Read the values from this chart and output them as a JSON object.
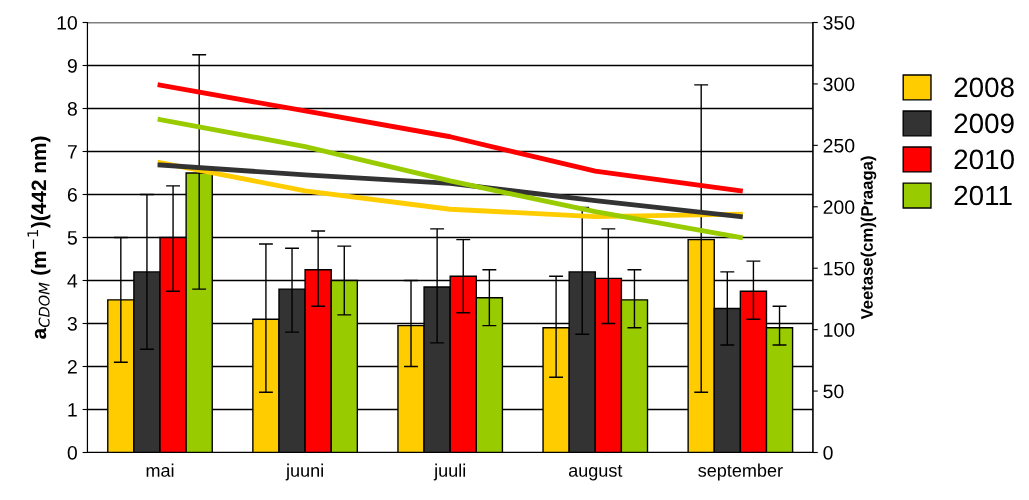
{
  "chart_data": {
    "type": "bar",
    "categories": [
      "mai",
      "juuni",
      "juuli",
      "august",
      "september"
    ],
    "ylabel": "a$_{CDOM}$ (m$^{−1}$)(442 nm)",
    "y2label": "Veetase(cm)(Praaga)",
    "ylim": [
      0,
      10
    ],
    "yticks": [
      0,
      1,
      2,
      3,
      4,
      5,
      6,
      7,
      8,
      9,
      10
    ],
    "y2lim": [
      0,
      350
    ],
    "y2ticks": [
      0,
      50,
      100,
      150,
      200,
      250,
      300,
      350
    ],
    "grid": "y",
    "legend": "right",
    "marker": "none",
    "series": [
      {
        "name": "2008",
        "color": "#ffcc00",
        "values": [
          3.55,
          3.1,
          2.95,
          2.9,
          4.95
        ],
        "errors": [
          [
            2.1,
            5.0
          ],
          [
            1.4,
            4.85
          ],
          [
            2.0,
            4.0
          ],
          [
            1.75,
            4.1
          ],
          [
            1.4,
            8.55
          ]
        ]
      },
      {
        "name": "2009",
        "color": "#333333",
        "values": [
          4.2,
          3.8,
          3.85,
          4.2,
          3.35
        ],
        "errors": [
          [
            2.4,
            6.0
          ],
          [
            2.8,
            4.75
          ],
          [
            2.55,
            5.2
          ],
          [
            2.75,
            5.7
          ],
          [
            2.5,
            4.2
          ]
        ]
      },
      {
        "name": "2010",
        "color": "#ff0000",
        "values": [
          5.0,
          4.25,
          4.1,
          4.05,
          3.75
        ],
        "errors": [
          [
            3.75,
            6.2
          ],
          [
            3.4,
            5.15
          ],
          [
            3.25,
            4.95
          ],
          [
            3.0,
            5.2
          ],
          [
            3.1,
            4.45
          ]
        ]
      },
      {
        "name": "2011",
        "color": "#99cc00",
        "values": [
          6.5,
          4.0,
          3.6,
          3.55,
          2.9
        ],
        "errors": [
          [
            3.8,
            9.25
          ],
          [
            3.2,
            4.8
          ],
          [
            2.95,
            4.25
          ],
          [
            2.9,
            4.25
          ],
          [
            2.5,
            3.4
          ]
        ]
      },
      {
        "type": "line",
        "axis": "y2",
        "color": "#ffcc00",
        "values": [
          236,
          213,
          198,
          192,
          194
        ]
      },
      {
        "type": "line",
        "axis": "y2",
        "color": "#333333",
        "values": [
          234,
          226,
          219,
          205,
          192
        ]
      },
      {
        "type": "line",
        "axis": "y2",
        "color": "#ff0000",
        "values": [
          299,
          278,
          257,
          229,
          213
        ]
      },
      {
        "type": "line",
        "axis": "y2",
        "color": "#99cc00",
        "values": [
          271,
          249,
          221,
          196,
          175
        ]
      }
    ]
  }
}
